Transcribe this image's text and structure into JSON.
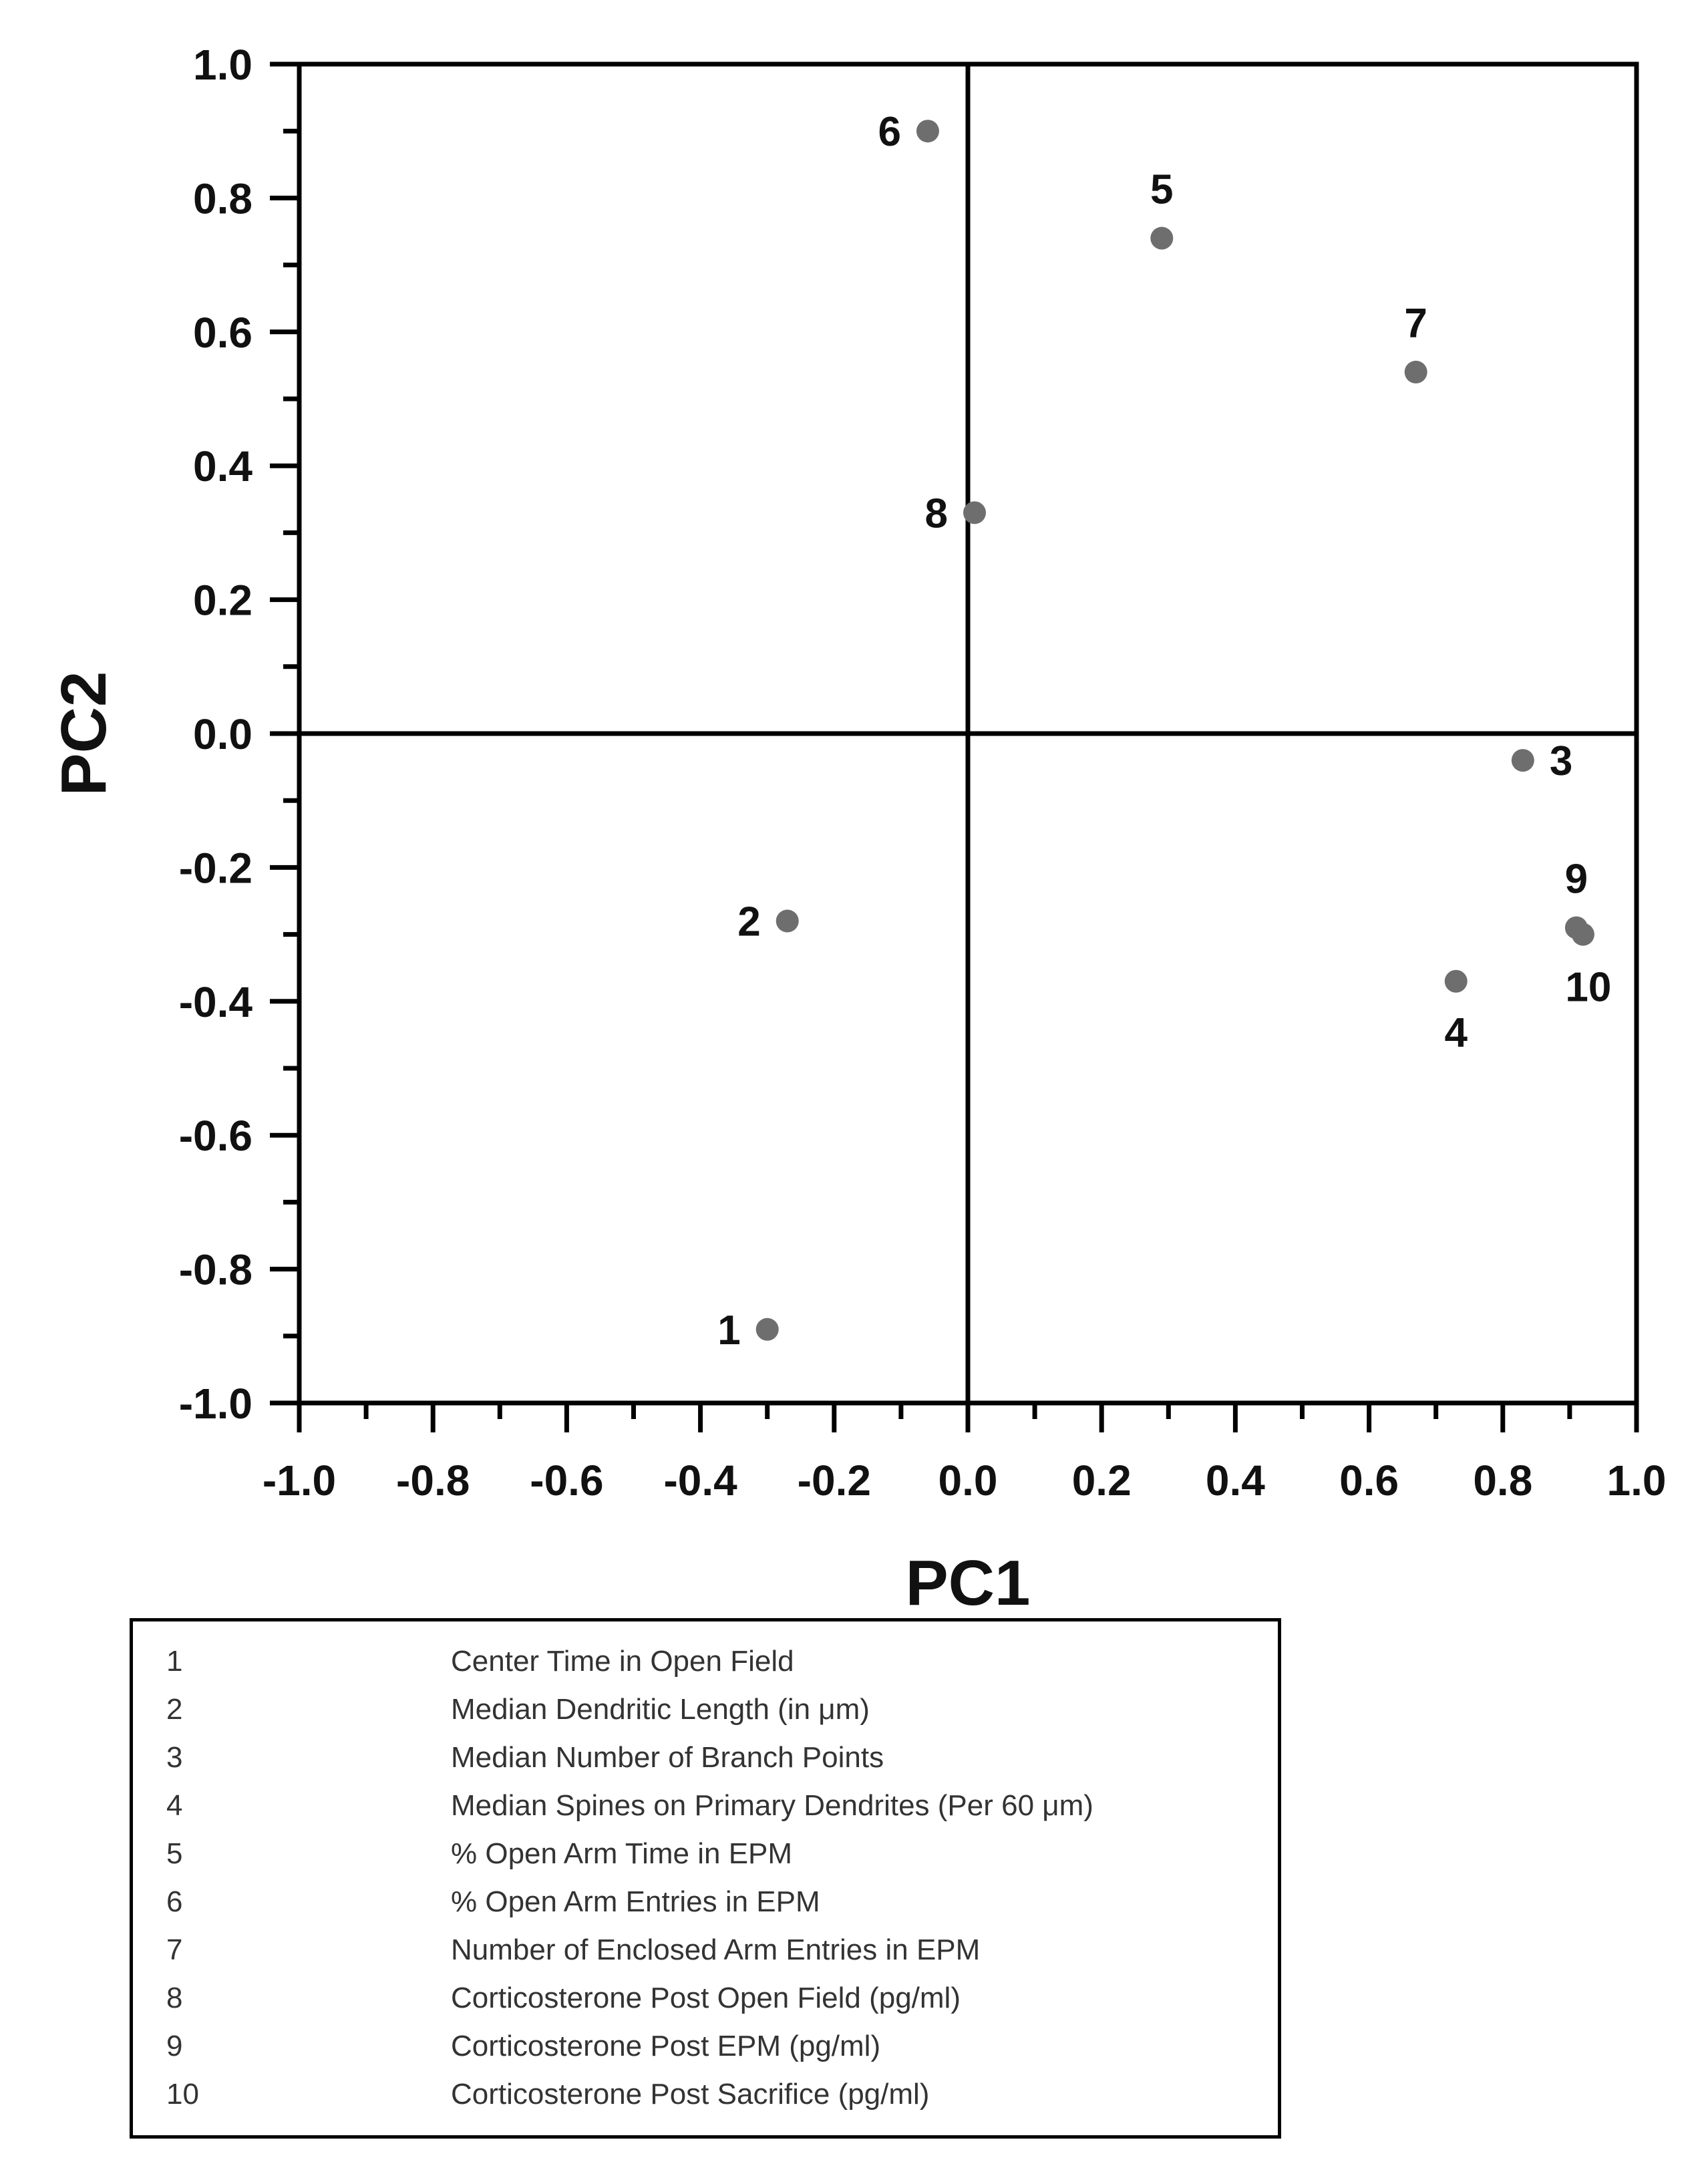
{
  "chart_data": {
    "type": "scatter",
    "xlabel": "PC1",
    "ylabel": "PC2",
    "xlim": [
      -1.0,
      1.0
    ],
    "ylim": [
      -1.0,
      1.0
    ],
    "x_ticks": [
      "-1.0",
      "-0.8",
      "-0.6",
      "-0.4",
      "-0.2",
      "0.0",
      "0.2",
      "0.4",
      "0.6",
      "0.8",
      "1.0"
    ],
    "y_ticks": [
      "1.0",
      "0.8",
      "0.6",
      "0.4",
      "0.2",
      "0.0",
      "-0.2",
      "-0.4",
      "-0.6",
      "-0.8",
      "-1.0"
    ],
    "grid": false,
    "reference_lines": {
      "x": 0.0,
      "y": 0.0
    },
    "point_color": "#6e6e6e",
    "points": [
      {
        "label": "1",
        "x": -0.3,
        "y": -0.89,
        "label_pos": "left"
      },
      {
        "label": "2",
        "x": -0.27,
        "y": -0.28,
        "label_pos": "left"
      },
      {
        "label": "3",
        "x": 0.83,
        "y": -0.04,
        "label_pos": "right"
      },
      {
        "label": "4",
        "x": 0.73,
        "y": -0.37,
        "label_pos": "below"
      },
      {
        "label": "5",
        "x": 0.29,
        "y": 0.74,
        "label_pos": "above"
      },
      {
        "label": "6",
        "x": -0.06,
        "y": 0.9,
        "label_pos": "left"
      },
      {
        "label": "7",
        "x": 0.67,
        "y": 0.54,
        "label_pos": "above"
      },
      {
        "label": "8",
        "x": 0.01,
        "y": 0.33,
        "label_pos": "left"
      },
      {
        "label": "9",
        "x": 0.91,
        "y": -0.29,
        "label_pos": "above"
      },
      {
        "label": "10",
        "x": 0.92,
        "y": -0.3,
        "label_pos": "below-right"
      }
    ]
  },
  "legend": {
    "items": [
      {
        "num": "1",
        "text": "Center Time in Open Field"
      },
      {
        "num": "2",
        "text": "Median Dendritic Length (in μm)"
      },
      {
        "num": "3",
        "text": "Median Number of Branch Points"
      },
      {
        "num": "4",
        "text": "Median Spines on Primary Dendrites (Per 60 μm)"
      },
      {
        "num": "5",
        "text": "% Open Arm Time in EPM"
      },
      {
        "num": "6",
        "text": "% Open Arm Entries in EPM"
      },
      {
        "num": "7",
        "text": "Number of Enclosed Arm Entries in EPM"
      },
      {
        "num": "8",
        "text": "Corticosterone Post Open Field (pg/ml)"
      },
      {
        "num": "9",
        "text": "Corticosterone Post EPM (pg/ml)"
      },
      {
        "num": "10",
        "text": "Corticosterone Post Sacrifice (pg/ml)"
      }
    ]
  }
}
